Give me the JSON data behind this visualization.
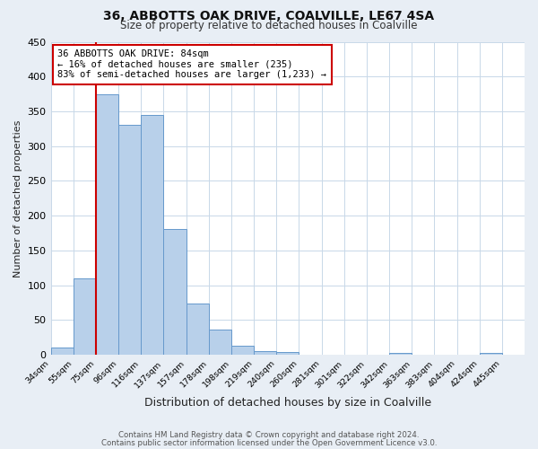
{
  "title": "36, ABBOTTS OAK DRIVE, COALVILLE, LE67 4SA",
  "subtitle": "Size of property relative to detached houses in Coalville",
  "xlabel": "Distribution of detached houses by size in Coalville",
  "ylabel": "Number of detached properties",
  "bin_labels": [
    "34sqm",
    "55sqm",
    "75sqm",
    "96sqm",
    "116sqm",
    "137sqm",
    "157sqm",
    "178sqm",
    "198sqm",
    "219sqm",
    "240sqm",
    "260sqm",
    "281sqm",
    "301sqm",
    "322sqm",
    "342sqm",
    "363sqm",
    "383sqm",
    "404sqm",
    "424sqm",
    "445sqm"
  ],
  "bar_values": [
    10,
    110,
    375,
    330,
    345,
    181,
    74,
    36,
    13,
    6,
    4,
    0,
    0,
    0,
    0,
    3,
    0,
    0,
    0,
    3,
    0
  ],
  "bar_color": "#b8d0ea",
  "bar_edge_color": "#6699cc",
  "vline_x": 2.0,
  "vline_color": "#cc0000",
  "annotation_text": "36 ABBOTTS OAK DRIVE: 84sqm\n← 16% of detached houses are smaller (235)\n83% of semi-detached houses are larger (1,233) →",
  "annotation_box_color": "#ffffff",
  "annotation_box_edge_color": "#cc0000",
  "ylim": [
    0,
    450
  ],
  "yticks": [
    0,
    50,
    100,
    150,
    200,
    250,
    300,
    350,
    400,
    450
  ],
  "footer_line1": "Contains HM Land Registry data © Crown copyright and database right 2024.",
  "footer_line2": "Contains public sector information licensed under the Open Government Licence v3.0.",
  "background_color": "#e8eef5",
  "plot_background_color": "#ffffff",
  "grid_color": "#c8d8e8"
}
